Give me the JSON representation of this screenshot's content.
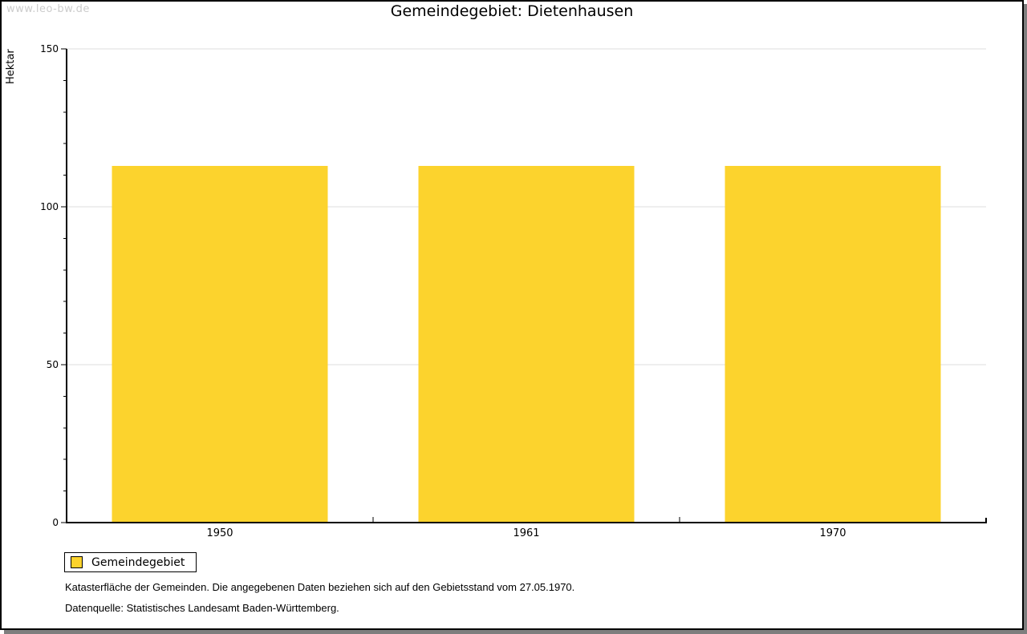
{
  "watermark": "www.leo-bw.de",
  "title": "Gemeindegebiet: Dietenhausen",
  "chart_data": {
    "type": "bar",
    "title": "Gemeindegebiet: Dietenhausen",
    "categories": [
      "1950",
      "1961",
      "1970"
    ],
    "series": [
      {
        "name": "Gemeindegebiet",
        "values": [
          113,
          113,
          113
        ]
      }
    ],
    "xlabel": "",
    "ylabel": "Hektar",
    "ylim": [
      0,
      150
    ],
    "y_major_ticks": [
      0,
      50,
      100,
      150
    ],
    "y_minor_step": 10,
    "grid": true,
    "legend_position": "bottom-left",
    "bar_color": "#FCD32D"
  },
  "legend": {
    "items": [
      {
        "label": "Gemeindegebiet",
        "color": "#FCD32D"
      }
    ]
  },
  "footer": {
    "line1": "Katasterfläche der Gemeinden. Die angegebenen Daten beziehen sich auf den Gebietsstand vom 27.05.1970.",
    "line2": "Datenquelle: Statistisches Landesamt Baden-Württemberg."
  },
  "colors": {
    "bar": "#FCD32D",
    "gridline": "#DEDEDE",
    "axis": "#000000",
    "watermark": "#CCCCCC",
    "window_border": "#000000",
    "window_shadow": "#7E7E7E"
  }
}
